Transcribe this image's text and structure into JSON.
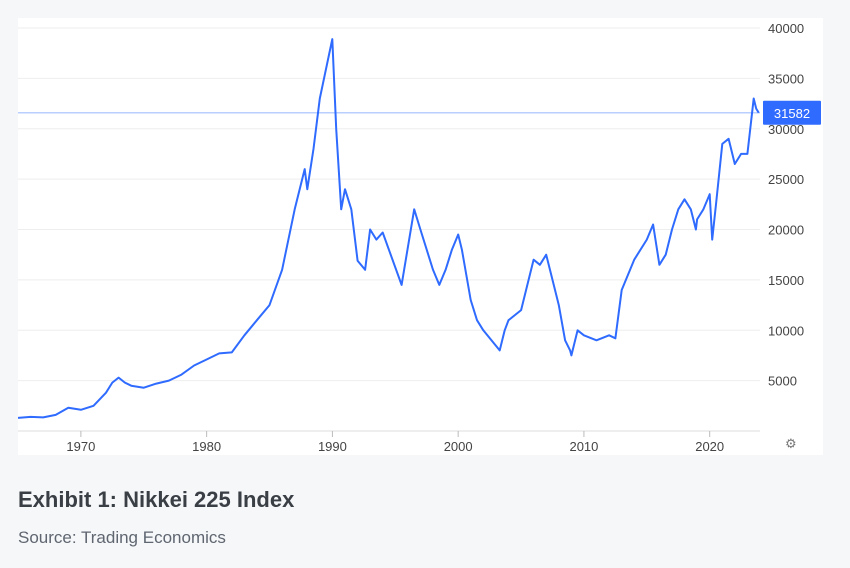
{
  "chart_data": {
    "type": "line",
    "title": "",
    "xlabel": "",
    "ylabel": "",
    "xlim": [
      1965,
      2024
    ],
    "ylim": [
      0,
      40000
    ],
    "x_ticks": [
      "1970",
      "1980",
      "1990",
      "2000",
      "2010",
      "2020"
    ],
    "y_ticks": [
      "5000",
      "10000",
      "15000",
      "20000",
      "25000",
      "30000",
      "35000",
      "40000"
    ],
    "grid": "horizontal",
    "line_color": "#2f6bff",
    "reference_line": {
      "value": 31582,
      "label": "31582",
      "color": "#b8cfff"
    },
    "label_color": "#2f6bff",
    "series": [
      {
        "x": [
          1965,
          1966,
          1967,
          1968,
          1969,
          1970,
          1971,
          1972,
          1972.5,
          1973,
          1973.5,
          1974,
          1975,
          1976,
          1977,
          1978,
          1979,
          1980,
          1981,
          1982,
          1983,
          1984,
          1985,
          1986,
          1987,
          1987.8,
          1988,
          1988.5,
          1989,
          1989.99,
          1990.3,
          1990.7,
          1991,
          1991.5,
          1992,
          1992.6,
          1993,
          1993.5,
          1994,
          1995.5,
          1996.5,
          1997,
          1998,
          1998.5,
          1999,
          1999.5,
          2000,
          2000.3,
          2001,
          2001.5,
          2002,
          2003.3,
          2003.7,
          2004,
          2005,
          2005.8,
          2006,
          2006.5,
          2007,
          2007.5,
          2008,
          2008.5,
          2008.9,
          2009,
          2009.5,
          2010,
          2011,
          2012,
          2012.5,
          2013,
          2014,
          2015,
          2015.5,
          2016,
          2016.5,
          2017,
          2017.5,
          2018,
          2018.5,
          2018.9,
          2019,
          2019.5,
          2020,
          2020.2,
          2020.5,
          2021,
          2021.5,
          2022,
          2022.5,
          2023,
          2023.5,
          2023.7,
          2023.9
        ],
        "y": [
          1300,
          1400,
          1350,
          1600,
          2300,
          2100,
          2500,
          3800,
          4800,
          5300,
          4800,
          4500,
          4300,
          4700,
          5000,
          5600,
          6500,
          7100,
          7700,
          7800,
          9500,
          11000,
          12500,
          16000,
          22000,
          26000,
          24000,
          28000,
          33000,
          38900,
          30000,
          22000,
          24000,
          22000,
          16900,
          16000,
          20000,
          19000,
          19700,
          14500,
          22000,
          20000,
          16000,
          14500,
          16000,
          18000,
          19500,
          18000,
          13000,
          11000,
          10000,
          8000,
          10000,
          11000,
          12000,
          16000,
          17000,
          16500,
          17500,
          15000,
          12500,
          9000,
          8000,
          7500,
          10000,
          9500,
          9000,
          9500,
          9200,
          14000,
          17000,
          19000,
          20500,
          16500,
          17500,
          20000,
          22000,
          23000,
          22000,
          20000,
          21000,
          22000,
          23500,
          19000,
          22500,
          28500,
          29000,
          26500,
          27500,
          27500,
          33000,
          32000,
          31582
        ]
      }
    ]
  },
  "caption": {
    "title": "Exhibit 1: Nikkei 225 Index",
    "source": "Source: Trading Economics"
  },
  "icons": {
    "settings": "settings-gear-icon"
  }
}
